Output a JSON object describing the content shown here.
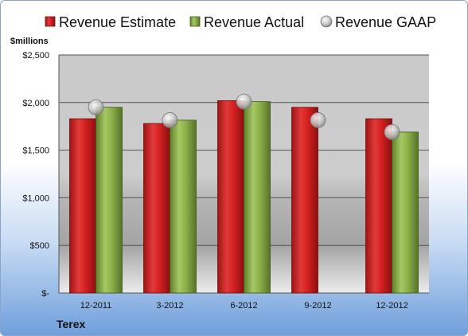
{
  "chart_data": {
    "type": "bar",
    "unit_label": "$millions",
    "company": "Terex",
    "categories": [
      "12-2011",
      "3-2012",
      "6-2012",
      "9-2012",
      "12-2012"
    ],
    "series": [
      {
        "name": "Revenue Estimate",
        "kind": "bar",
        "color": "#d42020",
        "values": [
          1830,
          1780,
          2020,
          1950,
          1830
        ]
      },
      {
        "name": "Revenue Actual",
        "kind": "bar",
        "color": "#8db04a",
        "values": [
          1950,
          1815,
          2010,
          null,
          1690
        ]
      },
      {
        "name": "Revenue GAAP",
        "kind": "marker",
        "color": "#c8c8c8",
        "values": [
          1950,
          1815,
          2010,
          1815,
          1690
        ]
      }
    ],
    "ylim": [
      0,
      2500
    ],
    "yticks": [
      0,
      500,
      1000,
      1500,
      2000,
      2500
    ],
    "ytick_labels": [
      "$-",
      "$500",
      "$1,000",
      "$1,500",
      "$2,000",
      "$2,500"
    ],
    "grid": true,
    "legend_position": "top"
  }
}
